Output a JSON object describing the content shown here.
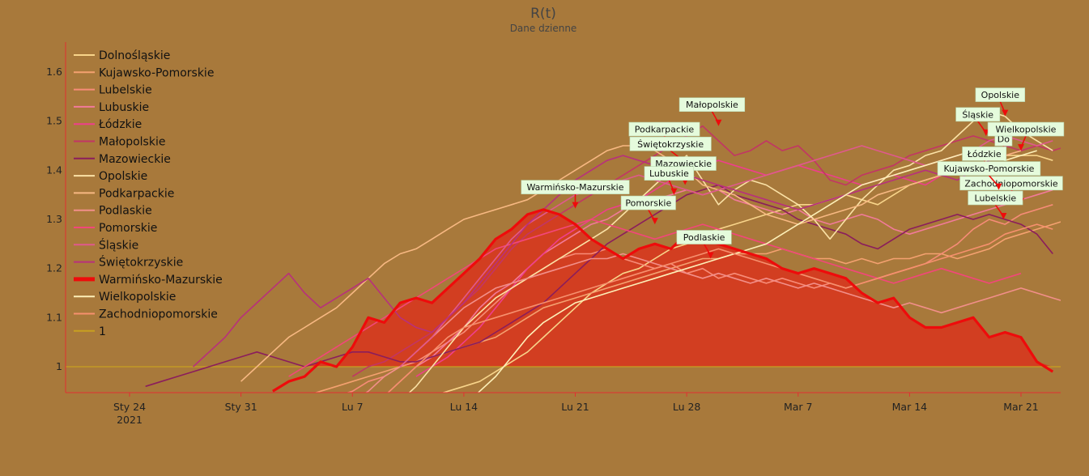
{
  "chart_data": {
    "type": "line",
    "title": "R(t)",
    "subtitle": "Dane dzienne",
    "xlabel": "",
    "ylabel": "",
    "x_start": "2021-01-20",
    "x_end": "2021-03-23",
    "xlim_days": [
      0,
      63
    ],
    "ylim": [
      0.95,
      1.66
    ],
    "yticks": [
      1,
      1.1,
      1.2,
      1.3,
      1.4,
      1.5,
      1.6
    ],
    "ytick_labels": [
      "1",
      "1.1",
      "1.2",
      "1.3",
      "1.4",
      "1.5",
      "1.6"
    ],
    "xticks": [
      {
        "day": 4,
        "label": "Sty 24",
        "sub": "2021"
      },
      {
        "day": 11,
        "label": "Sty 31",
        "sub": ""
      },
      {
        "day": 18,
        "label": "Lu 7",
        "sub": ""
      },
      {
        "day": 25,
        "label": "Lu 14",
        "sub": ""
      },
      {
        "day": 32,
        "label": "Lu 21",
        "sub": ""
      },
      {
        "day": 39,
        "label": "Lu 28",
        "sub": ""
      },
      {
        "day": 46,
        "label": "Mar 7",
        "sub": ""
      },
      {
        "day": 53,
        "label": "Mar 14",
        "sub": ""
      },
      {
        "day": 60,
        "label": "Mar 21",
        "sub": ""
      }
    ],
    "reference_line": {
      "name": "1",
      "value": 1,
      "color": "#c8a020"
    },
    "highlight_series": "Warmińsko-Mazurskie",
    "highlight_fill": "#d63a1f",
    "series": [
      {
        "name": "Dolnośląskie",
        "color": "#f8d48a",
        "start_day": 18,
        "values": [
          0.88,
          0.9,
          0.91,
          0.92,
          0.93,
          0.94,
          0.95,
          0.96,
          0.97,
          0.99,
          1.01,
          1.03,
          1.06,
          1.09,
          1.12,
          1.15,
          1.17,
          1.19,
          1.2,
          1.22,
          1.24,
          1.25,
          1.27,
          1.28,
          1.29,
          1.3,
          1.31,
          1.32,
          1.33,
          1.33,
          1.34,
          1.35,
          1.34,
          1.33,
          1.35,
          1.37,
          1.38,
          1.39,
          1.4,
          1.41,
          1.42,
          1.43,
          1.43,
          1.43,
          1.42
        ]
      },
      {
        "name": "Kujawsko-Pomorskie",
        "color": "#f4a170",
        "start_day": 14,
        "values": [
          0.93,
          0.94,
          0.95,
          0.96,
          0.97,
          0.98,
          0.99,
          1.0,
          1.01,
          1.02,
          1.03,
          1.04,
          1.05,
          1.06,
          1.08,
          1.1,
          1.12,
          1.13,
          1.14,
          1.15,
          1.16,
          1.17,
          1.18,
          1.19,
          1.2,
          1.21,
          1.22,
          1.22,
          1.23,
          1.23,
          1.23,
          1.24,
          1.23,
          1.22,
          1.22,
          1.21,
          1.22,
          1.21,
          1.22,
          1.22,
          1.23,
          1.23,
          1.22,
          1.23,
          1.24,
          1.26,
          1.27,
          1.28,
          1.29,
          1.3
        ]
      },
      {
        "name": "Lubelskie",
        "color": "#f78c78",
        "start_day": 16,
        "values": [
          0.92,
          0.94,
          0.95,
          0.97,
          0.98,
          1.0,
          1.01,
          1.03,
          1.05,
          1.07,
          1.1,
          1.13,
          1.16,
          1.18,
          1.2,
          1.22,
          1.23,
          1.23,
          1.24,
          1.22,
          1.21,
          1.2,
          1.21,
          1.19,
          1.2,
          1.18,
          1.19,
          1.18,
          1.17,
          1.18,
          1.17,
          1.16,
          1.17,
          1.16,
          1.17,
          1.18,
          1.19,
          1.2,
          1.21,
          1.23,
          1.25,
          1.28,
          1.3,
          1.29,
          1.31,
          1.32,
          1.33
        ]
      },
      {
        "name": "Lubuskie",
        "color": "#f27a9a",
        "start_day": 20,
        "values": [
          0.94,
          0.97,
          1.0,
          1.02,
          1.05,
          1.08,
          1.12,
          1.15,
          1.17,
          1.2,
          1.23,
          1.25,
          1.27,
          1.29,
          1.3,
          1.32,
          1.33,
          1.34,
          1.35,
          1.36,
          1.35,
          1.36,
          1.34,
          1.33,
          1.32,
          1.31,
          1.32,
          1.3,
          1.29,
          1.3,
          1.31,
          1.3,
          1.28,
          1.27,
          1.28,
          1.29,
          1.3,
          1.31,
          1.32,
          1.33,
          1.34,
          1.35,
          1.36
        ]
      },
      {
        "name": "Łódzkie",
        "color": "#ee3f8c",
        "start_day": 22,
        "values": [
          0.98,
          1.0,
          1.02,
          1.05,
          1.08,
          1.12,
          1.16,
          1.2,
          1.23,
          1.26,
          1.28,
          1.3,
          1.32,
          1.33,
          1.34,
          1.36,
          1.38,
          1.4,
          1.41,
          1.42,
          1.41,
          1.4,
          1.39,
          1.4,
          1.41,
          1.4,
          1.39,
          1.38,
          1.37,
          1.38,
          1.39,
          1.38,
          1.37,
          1.39,
          1.4,
          1.41,
          1.42,
          1.43,
          1.44,
          1.45
        ]
      },
      {
        "name": "Małopolskie",
        "color": "#c23565",
        "start_day": 18,
        "values": [
          0.98,
          1.0,
          1.01,
          1.03,
          1.05,
          1.07,
          1.1,
          1.13,
          1.16,
          1.2,
          1.24,
          1.27,
          1.29,
          1.31,
          1.33,
          1.35,
          1.37,
          1.39,
          1.41,
          1.43,
          1.45,
          1.47,
          1.49,
          1.46,
          1.43,
          1.44,
          1.46,
          1.44,
          1.45,
          1.42,
          1.38,
          1.37,
          1.39,
          1.4,
          1.41,
          1.43,
          1.44,
          1.45,
          1.46,
          1.47,
          1.46,
          1.45,
          1.44,
          1.45,
          1.44,
          1.45
        ]
      },
      {
        "name": "Mazowieckie",
        "color": "#8b1d5c",
        "start_day": 5,
        "values": [
          0.96,
          0.97,
          0.98,
          0.99,
          1.0,
          1.01,
          1.02,
          1.03,
          1.02,
          1.01,
          1.0,
          1.01,
          1.02,
          1.03,
          1.03,
          1.02,
          1.01,
          1.01,
          1.02,
          1.03,
          1.04,
          1.05,
          1.07,
          1.09,
          1.11,
          1.13,
          1.16,
          1.19,
          1.22,
          1.25,
          1.27,
          1.29,
          1.31,
          1.33,
          1.35,
          1.36,
          1.37,
          1.35,
          1.34,
          1.33,
          1.32,
          1.3,
          1.29,
          1.28,
          1.27,
          1.25,
          1.24,
          1.26,
          1.28,
          1.29,
          1.3,
          1.31,
          1.3,
          1.31,
          1.3,
          1.29,
          1.27,
          1.23
        ]
      },
      {
        "name": "Opolskie",
        "color": "#fbe2a6",
        "start_day": 20,
        "values": [
          0.9,
          0.93,
          0.96,
          1.0,
          1.04,
          1.08,
          1.11,
          1.14,
          1.16,
          1.18,
          1.2,
          1.22,
          1.24,
          1.26,
          1.28,
          1.31,
          1.34,
          1.37,
          1.4,
          1.43,
          1.38,
          1.33,
          1.36,
          1.38,
          1.37,
          1.35,
          1.33,
          1.3,
          1.26,
          1.3,
          1.34,
          1.37,
          1.4,
          1.41,
          1.43,
          1.44,
          1.47,
          1.5,
          1.52,
          1.51,
          1.48,
          1.46,
          1.44
        ]
      },
      {
        "name": "Podkarpackie",
        "color": "#f7b882",
        "start_day": 11,
        "values": [
          0.97,
          1.0,
          1.03,
          1.06,
          1.08,
          1.1,
          1.12,
          1.15,
          1.18,
          1.21,
          1.23,
          1.24,
          1.26,
          1.28,
          1.3,
          1.31,
          1.32,
          1.33,
          1.34,
          1.36,
          1.38,
          1.4,
          1.42,
          1.44,
          1.45,
          1.45,
          1.44,
          1.42,
          1.4,
          1.37,
          1.36,
          1.35,
          1.33,
          1.31,
          1.3,
          1.29,
          1.3,
          1.31,
          1.32,
          1.33,
          1.35,
          1.36,
          1.37,
          1.38,
          1.39,
          1.4,
          1.41,
          1.42,
          1.43,
          1.44
        ]
      },
      {
        "name": "Podlaskie",
        "color": "#f28f8a",
        "start_day": 18,
        "values": [
          0.93,
          0.95,
          0.98,
          1.0,
          1.03,
          1.06,
          1.09,
          1.12,
          1.14,
          1.16,
          1.17,
          1.18,
          1.19,
          1.2,
          1.21,
          1.22,
          1.22,
          1.23,
          1.22,
          1.21,
          1.2,
          1.19,
          1.18,
          1.19,
          1.18,
          1.17,
          1.18,
          1.17,
          1.16,
          1.17,
          1.16,
          1.15,
          1.14,
          1.13,
          1.12,
          1.13,
          1.12,
          1.11,
          1.12,
          1.13,
          1.14,
          1.15,
          1.16,
          1.15,
          1.14,
          1.13
        ]
      },
      {
        "name": "Pomorskie",
        "color": "#f2477a",
        "start_day": 14,
        "values": [
          0.98,
          1.0,
          1.02,
          1.04,
          1.06,
          1.08,
          1.1,
          1.12,
          1.14,
          1.16,
          1.18,
          1.2,
          1.22,
          1.24,
          1.25,
          1.26,
          1.27,
          1.28,
          1.29,
          1.3,
          1.29,
          1.28,
          1.27,
          1.26,
          1.27,
          1.28,
          1.29,
          1.28,
          1.27,
          1.26,
          1.25,
          1.24,
          1.23,
          1.22,
          1.21,
          1.2,
          1.19,
          1.18,
          1.17,
          1.18,
          1.19,
          1.2,
          1.19,
          1.18,
          1.17,
          1.18,
          1.19
        ]
      },
      {
        "name": "Śląskie",
        "color": "#e0598d",
        "start_day": 21,
        "values": [
          1.0,
          1.03,
          1.06,
          1.1,
          1.14,
          1.18,
          1.22,
          1.26,
          1.29,
          1.31,
          1.33,
          1.35,
          1.36,
          1.37,
          1.38,
          1.39,
          1.38,
          1.37,
          1.36,
          1.35,
          1.36,
          1.37,
          1.38,
          1.39,
          1.4,
          1.41,
          1.42,
          1.43,
          1.44,
          1.45,
          1.44,
          1.43,
          1.42,
          1.41,
          1.42,
          1.43,
          1.44,
          1.46,
          1.47,
          1.46,
          1.45,
          1.46
        ]
      },
      {
        "name": "Świętokrzyskie",
        "color": "#b8307c",
        "start_day": 8,
        "values": [
          1.0,
          1.03,
          1.06,
          1.1,
          1.13,
          1.16,
          1.19,
          1.15,
          1.12,
          1.14,
          1.16,
          1.18,
          1.14,
          1.1,
          1.08,
          1.07,
          1.1,
          1.13,
          1.17,
          1.21,
          1.25,
          1.29,
          1.32,
          1.35,
          1.38,
          1.4,
          1.42,
          1.43,
          1.42,
          1.41,
          1.4,
          1.39,
          1.38,
          1.37,
          1.36,
          1.35,
          1.34,
          1.33,
          1.32,
          1.33,
          1.34,
          1.35,
          1.36,
          1.37,
          1.38,
          1.39,
          1.4,
          1.39,
          1.38,
          1.4,
          1.42,
          1.43
        ]
      },
      {
        "name": "Warmińsko-Mazurskie",
        "color": "#ee0b0b",
        "start_day": 13,
        "values": [
          0.95,
          0.97,
          0.98,
          1.01,
          1.0,
          1.04,
          1.1,
          1.09,
          1.13,
          1.14,
          1.13,
          1.16,
          1.19,
          1.22,
          1.26,
          1.28,
          1.31,
          1.32,
          1.31,
          1.29,
          1.26,
          1.24,
          1.22,
          1.24,
          1.25,
          1.24,
          1.27,
          1.26,
          1.25,
          1.24,
          1.23,
          1.22,
          1.2,
          1.19,
          1.2,
          1.19,
          1.18,
          1.15,
          1.13,
          1.14,
          1.1,
          1.08,
          1.08,
          1.09,
          1.1,
          1.06,
          1.07,
          1.06,
          1.01,
          0.99
        ]
      },
      {
        "name": "Wielkopolskie",
        "color": "#fdf0b8",
        "start_day": 25,
        "values": [
          0.92,
          0.95,
          0.98,
          1.02,
          1.06,
          1.09,
          1.11,
          1.13,
          1.14,
          1.15,
          1.16,
          1.17,
          1.18,
          1.19,
          1.2,
          1.21,
          1.22,
          1.23,
          1.24,
          1.25,
          1.27,
          1.29,
          1.31,
          1.33,
          1.35,
          1.37,
          1.38,
          1.39,
          1.4,
          1.41,
          1.42,
          1.43,
          1.44,
          1.43,
          1.42,
          1.43,
          1.44
        ]
      },
      {
        "name": "Zachodniopomorskie",
        "color": "#f6906e",
        "start_day": 20,
        "values": [
          0.94,
          0.97,
          1.0,
          1.03,
          1.06,
          1.08,
          1.09,
          1.1,
          1.11,
          1.12,
          1.13,
          1.14,
          1.15,
          1.16,
          1.17,
          1.18,
          1.19,
          1.2,
          1.21,
          1.22,
          1.23,
          1.24,
          1.23,
          1.22,
          1.21,
          1.2,
          1.19,
          1.18,
          1.17,
          1.16,
          1.17,
          1.18,
          1.19,
          1.2,
          1.21,
          1.22,
          1.23,
          1.24,
          1.25,
          1.27,
          1.28,
          1.29,
          1.28
        ]
      }
    ],
    "annotations": [
      {
        "text": "Warmińsko-Mazurskie",
        "day": 32,
        "y": 1.322,
        "color": "#ee0b0b"
      },
      {
        "text": "Małopolskie",
        "day": 41,
        "y": 1.49,
        "color": "#ee0b0b"
      },
      {
        "text": "Podkarpackie",
        "day": 38,
        "y": 1.44,
        "color": "#ee0b0b"
      },
      {
        "text": "Świętokrzyskie",
        "day": 38.9,
        "y": 1.41,
        "color": "#ee0b0b"
      },
      {
        "text": "Mazowieckie",
        "day": 38.9,
        "y": 1.37,
        "color": "#ee0b0b"
      },
      {
        "text": "Lubuskie",
        "day": 38.2,
        "y": 1.35,
        "color": "#ee0b0b"
      },
      {
        "text": "Pomorskie",
        "day": 37,
        "y": 1.29,
        "color": "#ee0b0b"
      },
      {
        "text": "Podlaskie",
        "day": 40.5,
        "y": 1.22,
        "color": "#ee0b0b"
      },
      {
        "text": "Opolskie",
        "day": 59,
        "y": 1.51,
        "color": "#ee0b0b"
      },
      {
        "text": "Śląskie",
        "day": 57.8,
        "y": 1.47,
        "color": "#ee0b0b"
      },
      {
        "text": "Do",
        "day": 58.9,
        "y": 1.42,
        "color": "#ee0b0b"
      },
      {
        "text": "Wielkopolskie",
        "day": 60,
        "y": 1.44,
        "color": "#ee0b0b"
      },
      {
        "text": "Łódzkie",
        "day": 58,
        "y": 1.39,
        "color": "#ee0b0b"
      },
      {
        "text": "Zachodniopomorskie",
        "day": 60,
        "y": 1.33,
        "color": "#ee0b0b"
      },
      {
        "text": "Kujawsko-Pomorskie",
        "day": 58.6,
        "y": 1.36,
        "color": "#ee0b0b"
      },
      {
        "text": "Lubelskie",
        "day": 58.9,
        "y": 1.3,
        "color": "#ee0b0b"
      }
    ]
  }
}
